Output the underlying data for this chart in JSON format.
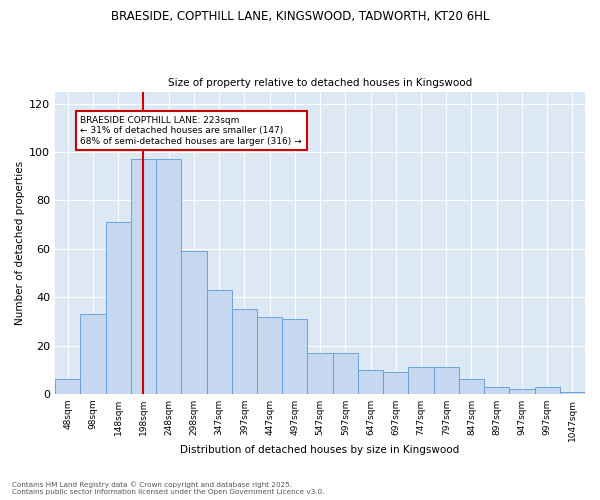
{
  "title1": "BRAESIDE, COPTHILL LANE, KINGSWOOD, TADWORTH, KT20 6HL",
  "title2": "Size of property relative to detached houses in Kingswood",
  "xlabel": "Distribution of detached houses by size in Kingswood",
  "ylabel": "Number of detached properties",
  "bar_labels": [
    "48sqm",
    "98sqm",
    "148sqm",
    "198sqm",
    "248sqm",
    "298sqm",
    "347sqm",
    "397sqm",
    "447sqm",
    "497sqm",
    "547sqm",
    "597sqm",
    "647sqm",
    "697sqm",
    "747sqm",
    "797sqm",
    "847sqm",
    "897sqm",
    "947sqm",
    "997sqm",
    "1047sqm"
  ],
  "bar_values": [
    6,
    33,
    71,
    97,
    97,
    59,
    43,
    35,
    32,
    31,
    17,
    17,
    10,
    9,
    11,
    11,
    6,
    3,
    2,
    3,
    1
  ],
  "bar_color": "#c5d8f0",
  "bar_edgecolor": "#5b9bd5",
  "annotation_text_line1": "BRAESIDE COPTHILL LANE: 223sqm",
  "annotation_text_line2": "← 31% of detached houses are smaller (147)",
  "annotation_text_line3": "68% of semi-detached houses are larger (316) →",
  "annotation_box_color": "#ffffff",
  "annotation_box_edgecolor": "#cc0000",
  "vline_color": "#cc0000",
  "background_color": "#dde8f5",
  "ylim": [
    0,
    125
  ],
  "yticks": [
    0,
    20,
    40,
    60,
    80,
    100,
    120
  ],
  "footnote1": "Contains HM Land Registry data © Crown copyright and database right 2025.",
  "footnote2": "Contains public sector information licensed under the Open Government Licence v3.0."
}
